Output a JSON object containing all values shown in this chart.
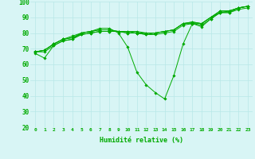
{
  "title": "",
  "xlabel": "Humidité relative (%)",
  "ylabel": "",
  "background_color": "#d8f5f5",
  "grid_color": "#b8e8e8",
  "line_color": "#00aa00",
  "xlim": [
    -0.5,
    23.5
  ],
  "ylim": [
    20,
    100
  ],
  "yticks": [
    20,
    30,
    40,
    50,
    60,
    70,
    80,
    90,
    100
  ],
  "xticks": [
    0,
    1,
    2,
    3,
    4,
    5,
    6,
    7,
    8,
    9,
    10,
    11,
    12,
    13,
    14,
    15,
    16,
    17,
    18,
    19,
    20,
    21,
    22,
    23
  ],
  "series": [
    [
      67,
      64,
      72,
      75,
      76,
      80,
      81,
      83,
      83,
      80,
      71,
      55,
      47,
      42,
      38,
      53,
      73,
      86,
      84,
      89,
      93,
      93,
      96,
      97
    ],
    [
      68,
      68,
      72,
      75,
      76,
      79,
      80,
      81,
      81,
      81,
      80,
      80,
      79,
      79,
      80,
      81,
      85,
      86,
      85,
      89,
      93,
      93,
      95,
      96
    ],
    [
      68,
      69,
      73,
      76,
      77,
      79,
      80,
      81,
      81,
      81,
      80,
      80,
      79,
      80,
      81,
      82,
      86,
      86,
      86,
      90,
      93,
      94,
      96,
      97
    ],
    [
      68,
      69,
      73,
      76,
      77,
      80,
      81,
      82,
      82,
      81,
      81,
      80,
      80,
      80,
      81,
      82,
      86,
      87,
      86,
      90,
      94,
      94,
      96,
      97
    ],
    [
      68,
      69,
      73,
      76,
      78,
      80,
      81,
      82,
      82,
      81,
      81,
      81,
      80,
      80,
      81,
      82,
      86,
      87,
      86,
      90,
      94,
      94,
      96,
      97
    ]
  ]
}
